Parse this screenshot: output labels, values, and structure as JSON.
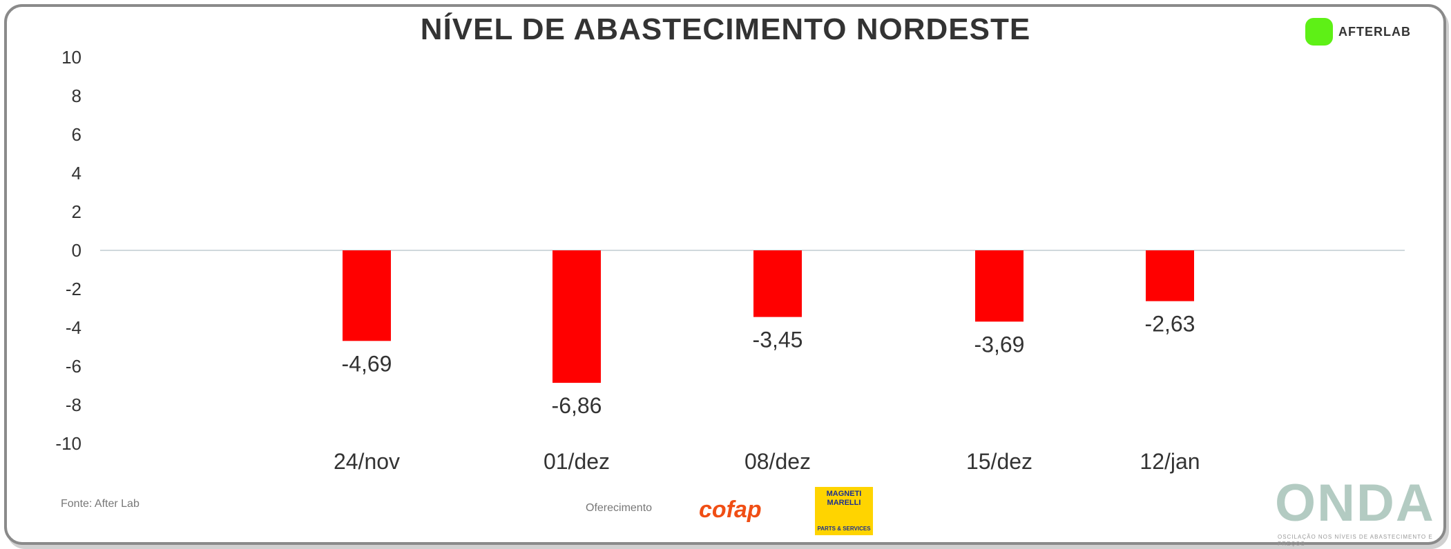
{
  "chart_data": {
    "type": "bar",
    "title": "NÍVEL DE ABASTECIMENTO NORDESTE",
    "categories": [
      "24/nov",
      "01/dez",
      "08/dez",
      "15/dez",
      "12/jan"
    ],
    "values": [
      -4.69,
      -6.86,
      -3.45,
      -3.69,
      -2.63
    ],
    "data_labels": [
      "-4,69",
      "-6,86",
      "-3,45",
      "-3,69",
      "-2,63"
    ],
    "ylim": [
      -10,
      10
    ],
    "yticks": [
      "10",
      "8",
      "6",
      "4",
      "2",
      "0",
      "-2",
      "-4",
      "-6",
      "-8",
      "-10"
    ],
    "bar_color": "#ff0000",
    "grid": false
  },
  "brand": {
    "name": "AFTERLAB",
    "color": "#5ef016"
  },
  "footer": {
    "source": "Fonte: After Lab",
    "sponsor_label": "Oferecimento",
    "sponsor1": "cofap",
    "sponsor2_top": "MAGNETI MARELLI",
    "sponsor2_bottom": "PARTS & SERVICES",
    "onda": "ONDA",
    "onda_sub": "OSCILAÇÃO NOS NÍVEIS DE ABASTECIMENTO E PREÇOS"
  }
}
